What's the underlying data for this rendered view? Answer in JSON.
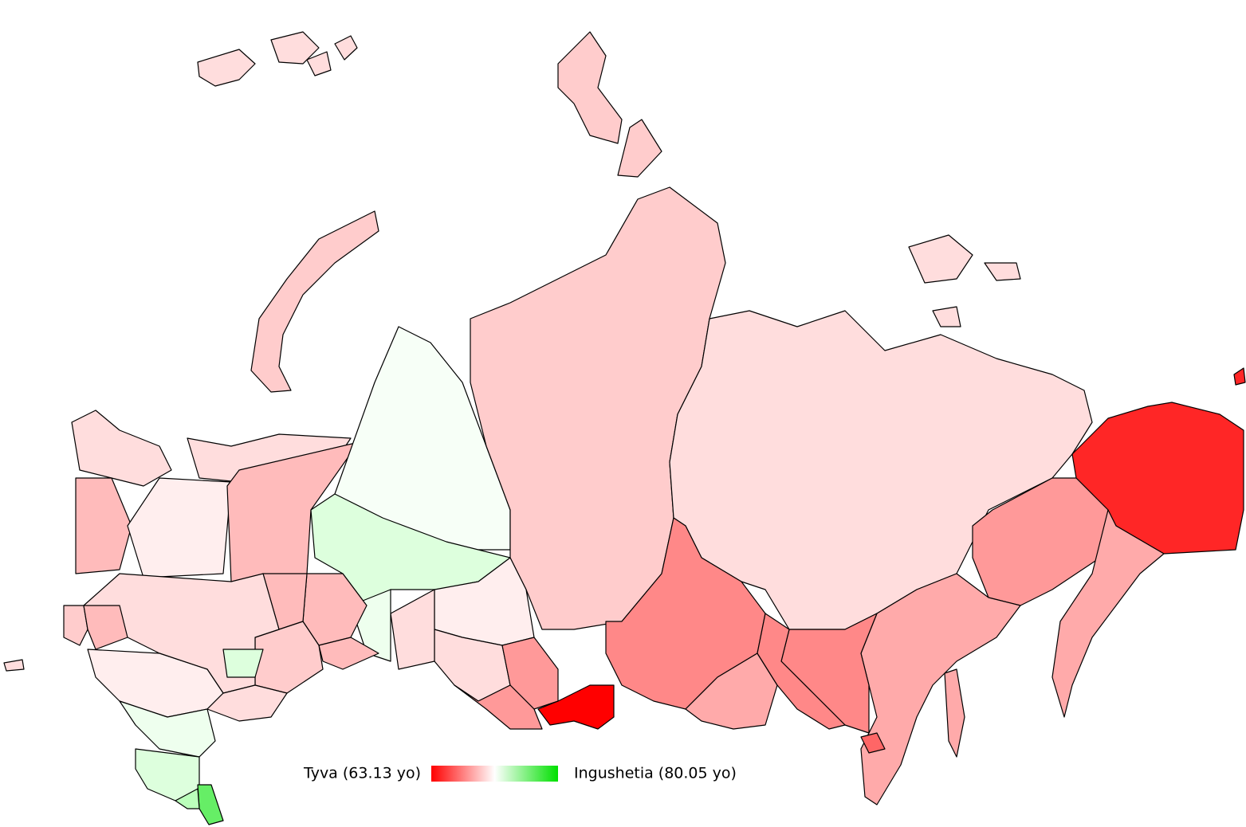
{
  "legend": {
    "min_label": "Tyva (63.13 yo)",
    "max_label": "Ingushetia (80.05 yo)"
  }
}
